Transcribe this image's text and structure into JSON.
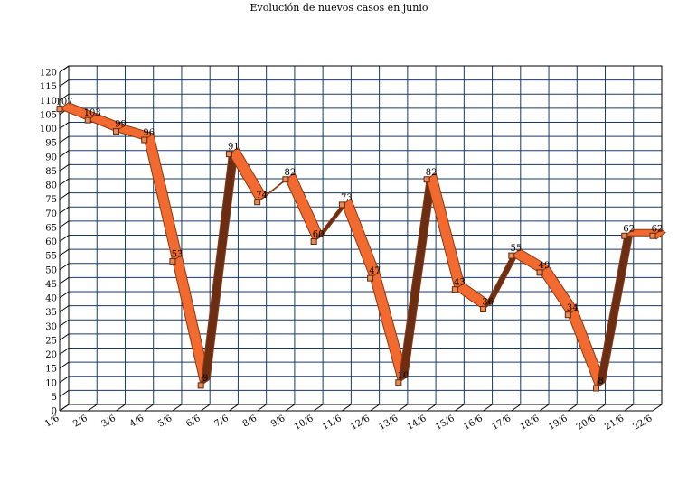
{
  "chart_data": {
    "type": "line",
    "title": "Evolución de nuevos casos en junio",
    "categories": [
      "1/6",
      "2/6",
      "3/6",
      "4/6",
      "5/6",
      "6/6",
      "7/6",
      "8/6",
      "9/6",
      "10/6",
      "11/6",
      "12/6",
      "13/6",
      "14/6",
      "15/6",
      "16/6",
      "17/6",
      "18/6",
      "19/6",
      "20/6",
      "21/6",
      "22/6"
    ],
    "series": [
      {
        "values": [
          107,
          103,
          99,
          96,
          53,
          9,
          91,
          74,
          82,
          60,
          73,
          47,
          10,
          82,
          43,
          36,
          55,
          49,
          34,
          8,
          62,
          62
        ]
      }
    ],
    "ylim": [
      0,
      120
    ],
    "ytick_step": 5,
    "grid": true,
    "style": "3d-ribbon",
    "colors": {
      "ribbon_down": "#f26a30",
      "ribbon_up": "#6b2e14",
      "ribbon_edge": "#8a3a10",
      "grid": "#1a3a66",
      "marker_fill": "#e88a5a"
    }
  }
}
